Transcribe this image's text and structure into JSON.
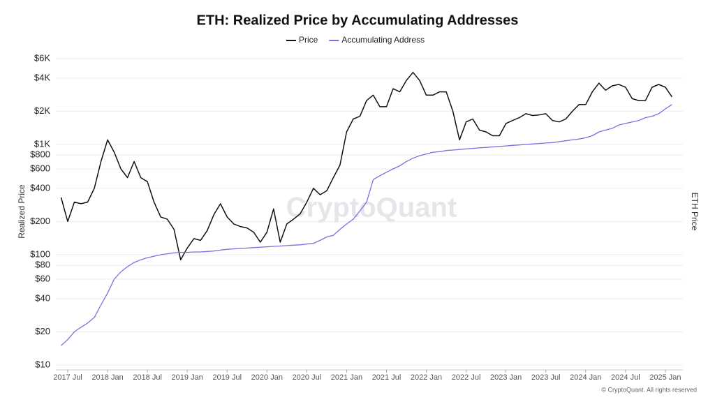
{
  "chart_data": {
    "type": "line",
    "title": "ETH: Realized Price by Accumulating Addresses",
    "y_label": "Realized Price",
    "y2_label": "ETH Price",
    "watermark": "CryptoQuant",
    "footer": "© CryptoQuant. All rights reserved",
    "log_scale": true,
    "grid": true,
    "legend": "top",
    "x": [
      "2017-06",
      "2017-07",
      "2017-08",
      "2017-09",
      "2017-10",
      "2017-11",
      "2017-12",
      "2018-01",
      "2018-02",
      "2018-03",
      "2018-04",
      "2018-05",
      "2018-06",
      "2018-07",
      "2018-08",
      "2018-09",
      "2018-10",
      "2018-11",
      "2018-12",
      "2019-01",
      "2019-02",
      "2019-03",
      "2019-04",
      "2019-05",
      "2019-06",
      "2019-07",
      "2019-08",
      "2019-09",
      "2019-10",
      "2019-11",
      "2019-12",
      "2020-01",
      "2020-02",
      "2020-03",
      "2020-04",
      "2020-05",
      "2020-06",
      "2020-07",
      "2020-08",
      "2020-09",
      "2020-10",
      "2020-11",
      "2020-12",
      "2021-01",
      "2021-02",
      "2021-03",
      "2021-04",
      "2021-05",
      "2021-06",
      "2021-07",
      "2021-08",
      "2021-09",
      "2021-10",
      "2021-11",
      "2021-12",
      "2022-01",
      "2022-02",
      "2022-03",
      "2022-04",
      "2022-05",
      "2022-06",
      "2022-07",
      "2022-08",
      "2022-09",
      "2022-10",
      "2022-11",
      "2022-12",
      "2023-01",
      "2023-02",
      "2023-03",
      "2023-04",
      "2023-05",
      "2023-06",
      "2023-07",
      "2023-08",
      "2023-09",
      "2023-10",
      "2023-11",
      "2023-12",
      "2024-01",
      "2024-02",
      "2024-03",
      "2024-04",
      "2024-05",
      "2024-06",
      "2024-07",
      "2024-08",
      "2024-09",
      "2024-10",
      "2024-11",
      "2024-12",
      "2025-01",
      "2025-02"
    ],
    "series": [
      {
        "name": "Price",
        "color": "#111111",
        "values": [
          330,
          200,
          300,
          290,
          300,
          400,
          700,
          1100,
          850,
          600,
          500,
          700,
          500,
          460,
          300,
          220,
          210,
          170,
          90,
          115,
          140,
          135,
          165,
          230,
          290,
          220,
          190,
          180,
          175,
          160,
          130,
          160,
          260,
          130,
          190,
          210,
          235,
          300,
          400,
          350,
          380,
          500,
          650,
          1300,
          1700,
          1800,
          2500,
          2800,
          2200,
          2200,
          3200,
          3000,
          3800,
          4500,
          3800,
          2800,
          2800,
          3000,
          3000,
          2000,
          1100,
          1600,
          1700,
          1350,
          1300,
          1200,
          1200,
          1550,
          1650,
          1750,
          1900,
          1830,
          1850,
          1900,
          1650,
          1600,
          1700,
          2000,
          2300,
          2300,
          3000,
          3600,
          3100,
          3400,
          3500,
          3300,
          2600,
          2500,
          2500,
          3300,
          3500,
          3300,
          2700
        ]
      },
      {
        "name": "Accumulating Address",
        "color": "#7b6fe0",
        "values": [
          15,
          17,
          20,
          22,
          24,
          27,
          35,
          45,
          60,
          70,
          78,
          85,
          90,
          94,
          97,
          100,
          102,
          104,
          105,
          105,
          106,
          106,
          107,
          108,
          110,
          112,
          113,
          114,
          115,
          116,
          117,
          118,
          119,
          120,
          121,
          122,
          123,
          125,
          127,
          135,
          145,
          150,
          170,
          190,
          210,
          250,
          300,
          480,
          520,
          560,
          600,
          640,
          700,
          750,
          790,
          820,
          850,
          860,
          880,
          890,
          900,
          910,
          920,
          930,
          940,
          950,
          960,
          970,
          980,
          990,
          1000,
          1010,
          1020,
          1030,
          1040,
          1060,
          1080,
          1100,
          1120,
          1150,
          1200,
          1300,
          1350,
          1400,
          1500,
          1550,
          1600,
          1650,
          1750,
          1800,
          1900,
          2100,
          2300
        ]
      }
    ],
    "ylim": [
      10,
      6000
    ],
    "yticks": [
      {
        "value": 10,
        "label": "$10"
      },
      {
        "value": 20,
        "label": "$20"
      },
      {
        "value": 40,
        "label": "$40"
      },
      {
        "value": 60,
        "label": "$60"
      },
      {
        "value": 80,
        "label": "$80"
      },
      {
        "value": 100,
        "label": "$100"
      },
      {
        "value": 200,
        "label": "$200"
      },
      {
        "value": 400,
        "label": "$400"
      },
      {
        "value": 600,
        "label": "$600"
      },
      {
        "value": 800,
        "label": "$800"
      },
      {
        "value": 1000,
        "label": "$1K"
      },
      {
        "value": 2000,
        "label": "$2K"
      },
      {
        "value": 4000,
        "label": "$4K"
      },
      {
        "value": 6000,
        "label": "$6K"
      }
    ],
    "xticks": [
      {
        "value": "2017-07",
        "label": "2017 Jul"
      },
      {
        "value": "2018-01",
        "label": "2018 Jan"
      },
      {
        "value": "2018-07",
        "label": "2018 Jul"
      },
      {
        "value": "2019-01",
        "label": "2019 Jan"
      },
      {
        "value": "2019-07",
        "label": "2019 Jul"
      },
      {
        "value": "2020-01",
        "label": "2020 Jan"
      },
      {
        "value": "2020-07",
        "label": "2020 Jul"
      },
      {
        "value": "2021-01",
        "label": "2021 Jan"
      },
      {
        "value": "2021-07",
        "label": "2021 Jul"
      },
      {
        "value": "2022-01",
        "label": "2022 Jan"
      },
      {
        "value": "2022-07",
        "label": "2022 Jul"
      },
      {
        "value": "2023-01",
        "label": "2023 Jan"
      },
      {
        "value": "2023-07",
        "label": "2023 Jul"
      },
      {
        "value": "2024-01",
        "label": "2024 Jan"
      },
      {
        "value": "2024-07",
        "label": "2024 Jul"
      },
      {
        "value": "2025-01",
        "label": "2025 Jan"
      }
    ]
  }
}
